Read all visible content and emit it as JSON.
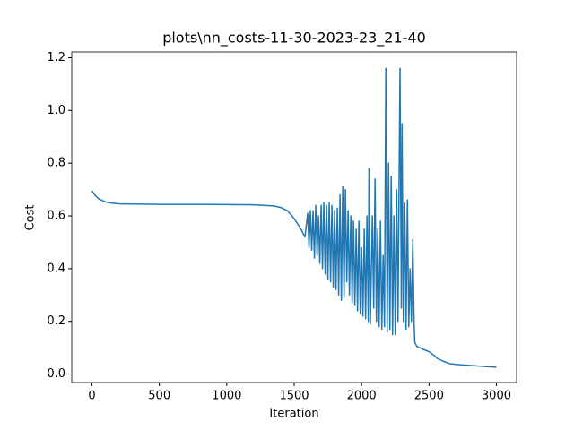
{
  "chart_data": {
    "type": "line",
    "title": "plots\\nn_costs-11-30-2023-23_21-40",
    "x_label": "Iteration",
    "y_label": "Cost",
    "xlim": [
      -150,
      3150
    ],
    "ylim": [
      -0.032,
      1.222
    ],
    "xticks": [
      0,
      500,
      1000,
      1500,
      2000,
      2500,
      3000
    ],
    "yticks": [
      {
        "value": 0,
        "label": "0.0"
      },
      0.2,
      0.4,
      0.6,
      0.8,
      {
        "value": 1,
        "label": "1.0"
      },
      1.2
    ],
    "series": [
      {
        "color": "#1f77b4",
        "x": [
          0,
          20,
          50,
          100,
          150,
          200,
          300,
          500,
          800,
          1000,
          1200,
          1350,
          1400,
          1450,
          1500,
          1550,
          1580,
          1600,
          1610,
          1620,
          1630,
          1640,
          1650,
          1660,
          1670,
          1680,
          1690,
          1700,
          1710,
          1720,
          1730,
          1740,
          1750,
          1760,
          1770,
          1780,
          1790,
          1800,
          1810,
          1820,
          1830,
          1840,
          1850,
          1860,
          1870,
          1880,
          1890,
          1900,
          1910,
          1920,
          1930,
          1940,
          1950,
          1960,
          1970,
          1980,
          1990,
          2000,
          2010,
          2020,
          2030,
          2040,
          2050,
          2055,
          2065,
          2080,
          2090,
          2100,
          2110,
          2120,
          2130,
          2140,
          2150,
          2160,
          2170,
          2180,
          2190,
          2200,
          2210,
          2220,
          2230,
          2240,
          2250,
          2260,
          2270,
          2285,
          2295,
          2300,
          2310,
          2320,
          2330,
          2340,
          2350,
          2360,
          2370,
          2380,
          2390,
          2395,
          2410,
          2450,
          2500,
          2540,
          2560,
          2600,
          2650,
          2700,
          2800,
          2900,
          3000
        ],
        "values": [
          0.695,
          0.68,
          0.665,
          0.653,
          0.648,
          0.646,
          0.645,
          0.644,
          0.644,
          0.643,
          0.642,
          0.638,
          0.632,
          0.62,
          0.59,
          0.55,
          0.52,
          0.61,
          0.48,
          0.62,
          0.47,
          0.62,
          0.44,
          0.64,
          0.45,
          0.6,
          0.42,
          0.64,
          0.4,
          0.65,
          0.38,
          0.64,
          0.36,
          0.65,
          0.35,
          0.64,
          0.33,
          0.62,
          0.32,
          0.63,
          0.3,
          0.68,
          0.28,
          0.71,
          0.29,
          0.7,
          0.35,
          0.62,
          0.3,
          0.6,
          0.27,
          0.58,
          0.26,
          0.55,
          0.24,
          0.58,
          0.23,
          0.48,
          0.22,
          0.55,
          0.21,
          0.6,
          0.2,
          0.78,
          0.19,
          0.6,
          0.25,
          0.74,
          0.2,
          0.55,
          0.18,
          0.58,
          0.17,
          0.45,
          0.18,
          1.16,
          0.16,
          0.8,
          0.17,
          0.75,
          0.15,
          0.6,
          0.15,
          0.7,
          0.2,
          1.16,
          0.25,
          0.95,
          0.2,
          0.65,
          0.17,
          0.66,
          0.18,
          0.4,
          0.2,
          0.51,
          0.18,
          0.12,
          0.105,
          0.095,
          0.085,
          0.07,
          0.06,
          0.05,
          0.04,
          0.037,
          0.033,
          0.029,
          0.026
        ]
      }
    ]
  }
}
